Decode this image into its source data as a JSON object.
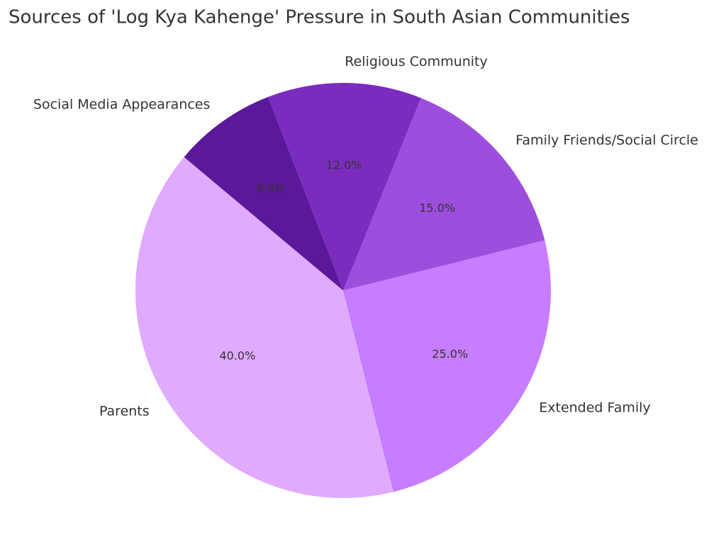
{
  "chart_data": {
    "type": "pie",
    "title": "Sources of 'Log Kya Kahenge' Pressure in South Asian Communities",
    "categories": [
      "Parents",
      "Extended Family",
      "Family Friends/Social Circle",
      "Religious Community",
      "Social Media Appearances"
    ],
    "values": [
      40,
      25,
      15,
      12,
      8
    ],
    "value_labels": [
      "40.0%",
      "25.0%",
      "15.0%",
      "12.0%",
      "8.0%"
    ],
    "colors": [
      "#e0aaff",
      "#c77dff",
      "#9d4edd",
      "#7b2cbf",
      "#5a189a"
    ]
  }
}
